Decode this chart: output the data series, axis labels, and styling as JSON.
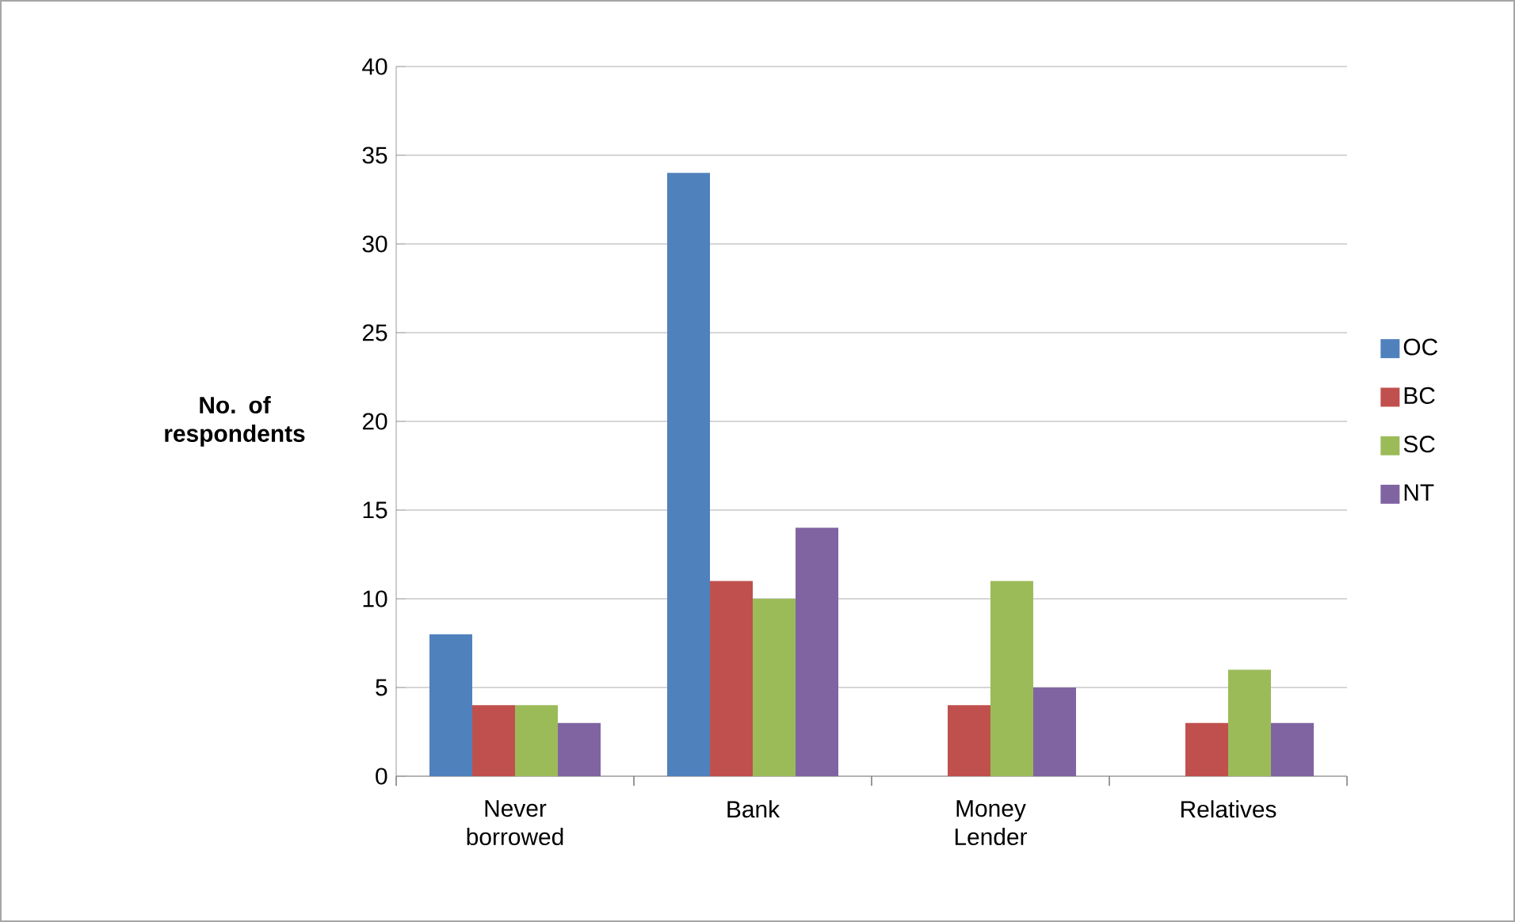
{
  "chart_data": {
    "type": "bar",
    "ylabel": "No. of respondents",
    "categories": [
      "Never borrowed",
      "Bank",
      "Money Lender",
      "Relatives"
    ],
    "series": [
      {
        "name": "OC",
        "color": "#4f81bd",
        "values": [
          8,
          34,
          0,
          0
        ]
      },
      {
        "name": "BC",
        "color": "#c0504d",
        "values": [
          4,
          11,
          4,
          3
        ]
      },
      {
        "name": "SC",
        "color": "#9bbb59",
        "values": [
          4,
          10,
          11,
          6
        ]
      },
      {
        "name": "NT",
        "color": "#8064a2",
        "values": [
          3,
          14,
          5,
          3
        ]
      }
    ],
    "ylim": [
      0,
      40
    ],
    "yticks": [
      0,
      5,
      10,
      15,
      20,
      25,
      30,
      35,
      40
    ],
    "grid": "y",
    "legend": "right"
  }
}
